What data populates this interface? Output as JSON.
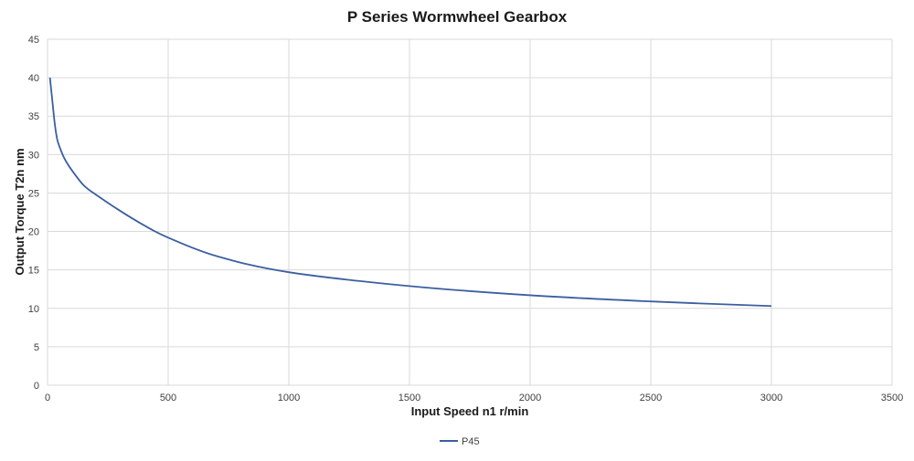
{
  "chart_data": {
    "type": "line",
    "title": "P Series Wormwheel Gearbox",
    "xlabel": "Input Speed n1 r/min",
    "ylabel": "Output Torque T2n nm",
    "xlim": [
      0,
      3500
    ],
    "ylim": [
      0,
      45
    ],
    "xticks": [
      0,
      500,
      1000,
      1500,
      2000,
      2500,
      3000,
      3500
    ],
    "yticks": [
      0,
      5,
      10,
      15,
      20,
      25,
      30,
      35,
      40,
      45
    ],
    "grid": true,
    "legend_position": "bottom",
    "series": [
      {
        "name": "P45",
        "color": "#3b5fa0",
        "x": [
          10,
          20,
          30,
          40,
          50,
          70,
          100,
          150,
          200,
          300,
          400,
          500,
          700,
          1000,
          1500,
          2000,
          2500,
          3000
        ],
        "y": [
          40,
          37,
          34,
          32,
          31,
          29.5,
          28,
          26,
          24.8,
          22.7,
          20.8,
          19.2,
          16.8,
          14.7,
          12.9,
          11.7,
          10.9,
          10.3
        ]
      }
    ]
  }
}
